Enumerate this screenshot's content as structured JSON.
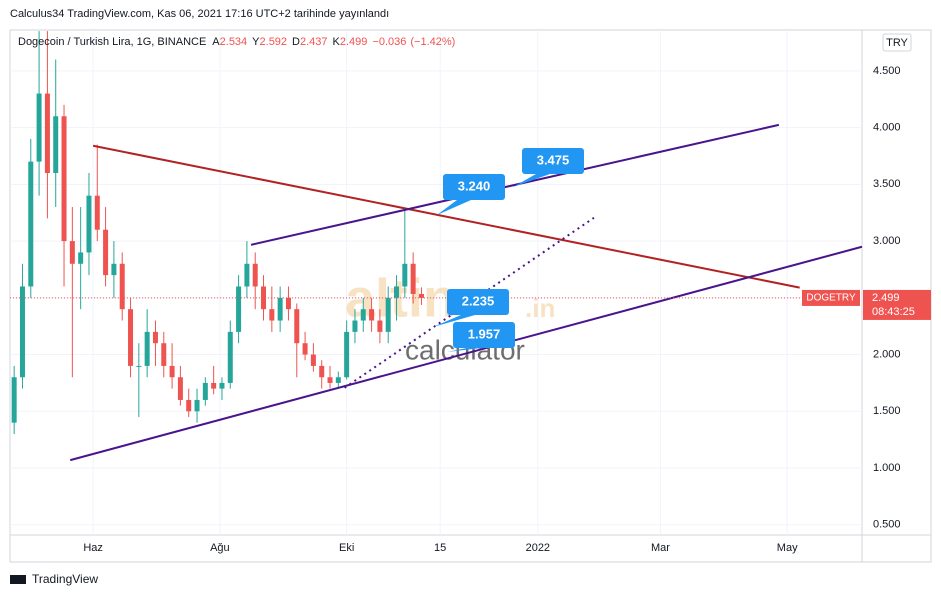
{
  "header": "Calculus34 TradingView.com, Kas 06, 2021 17:16 UTC+2 tarihinde yayınlandı",
  "currency_button": "TRY",
  "footer": "TradingView",
  "watermark": {
    "main": "altin",
    "suffix": ".in",
    "sub": "calculator"
  },
  "chart_data": {
    "type": "candlestick",
    "title": "Dogecoin / Turkish Lira, 1G, BINANCE",
    "ohlc": [
      {
        "label": "A",
        "value": 2.534
      },
      {
        "label": "Y",
        "value": 2.592
      },
      {
        "label": "D",
        "value": 2.437
      },
      {
        "label": "K",
        "value": 2.499
      }
    ],
    "change": {
      "value": -0.036,
      "label": "−0.036"
    },
    "change_pct": {
      "value": -1.42,
      "label": "(−1.42%)"
    },
    "symbol_tag": "DOGETRY",
    "last_price": 2.499,
    "countdown": "08:43:25",
    "up_color": "#26a69a",
    "down_color": "#ef5350",
    "grid": true,
    "xlim": [
      "2021-04-22",
      "2022-06-06"
    ],
    "xticks": [
      {
        "value": "2021-06-01",
        "label": "Haz"
      },
      {
        "value": "2021-08-01",
        "label": "Ağu"
      },
      {
        "value": "2021-10-01",
        "label": "Eki"
      },
      {
        "value": "2021-11-15",
        "label": "15"
      },
      {
        "value": "2022-01-01",
        "label": "2022"
      },
      {
        "value": "2022-03-01",
        "label": "Mar"
      },
      {
        "value": "2022-05-01",
        "label": "May"
      }
    ],
    "ylim": [
      0.41,
      4.86
    ],
    "yticks": [
      {
        "value": 0.5,
        "label": "0.500"
      },
      {
        "value": 1,
        "label": "1.000"
      },
      {
        "value": 1.5,
        "label": "1.500"
      },
      {
        "value": 2,
        "label": "2.000"
      },
      {
        "value": 2.5,
        "label": "2.500"
      },
      {
        "value": 3,
        "label": "3.000"
      },
      {
        "value": 3.5,
        "label": "3.500"
      },
      {
        "value": 4,
        "label": "4.000"
      },
      {
        "value": 4.5,
        "label": "4.500"
      }
    ],
    "candles": {
      "x": [
        "2021-04-24",
        "2021-04-28",
        "2021-05-02",
        "2021-05-06",
        "2021-05-10",
        "2021-05-14",
        "2021-05-18",
        "2021-05-22",
        "2021-05-26",
        "2021-05-30",
        "2021-06-03",
        "2021-06-07",
        "2021-06-11",
        "2021-06-15",
        "2021-06-19",
        "2021-06-23",
        "2021-06-27",
        "2021-07-01",
        "2021-07-05",
        "2021-07-09",
        "2021-07-13",
        "2021-07-17",
        "2021-07-21",
        "2021-07-25",
        "2021-07-29",
        "2021-08-02",
        "2021-08-06",
        "2021-08-10",
        "2021-08-14",
        "2021-08-18",
        "2021-08-22",
        "2021-08-26",
        "2021-08-30",
        "2021-09-03",
        "2021-09-07",
        "2021-09-11",
        "2021-09-15",
        "2021-09-19",
        "2021-09-23",
        "2021-09-27",
        "2021-10-01",
        "2021-10-05",
        "2021-10-09",
        "2021-10-13",
        "2021-10-17",
        "2021-10-21",
        "2021-10-25",
        "2021-10-29",
        "2021-11-02",
        "2021-11-06"
      ],
      "open": [
        1.4,
        1.8,
        2.6,
        3.7,
        4.3,
        3.6,
        4.1,
        3.0,
        2.8,
        2.9,
        3.4,
        3.1,
        2.7,
        2.8,
        2.4,
        1.9,
        1.9,
        2.2,
        2.1,
        1.9,
        1.8,
        1.6,
        1.5,
        1.6,
        1.75,
        1.7,
        1.75,
        2.2,
        2.6,
        2.8,
        2.6,
        2.4,
        2.3,
        2.5,
        2.4,
        2.1,
        2.0,
        1.9,
        1.8,
        1.75,
        1.8,
        2.2,
        2.3,
        2.4,
        2.3,
        2.2,
        2.5,
        2.6,
        2.8,
        2.534
      ],
      "high": [
        1.9,
        2.8,
        3.9,
        4.85,
        4.85,
        4.6,
        4.2,
        3.3,
        3.3,
        3.6,
        3.85,
        3.3,
        3.0,
        2.9,
        2.5,
        2.1,
        2.4,
        2.3,
        2.2,
        2.1,
        1.9,
        1.7,
        1.7,
        1.8,
        1.9,
        1.8,
        2.3,
        2.7,
        3.0,
        2.9,
        2.7,
        2.6,
        2.6,
        2.6,
        2.45,
        2.2,
        2.1,
        1.95,
        1.9,
        1.85,
        2.3,
        2.4,
        2.5,
        2.5,
        2.4,
        2.6,
        2.7,
        3.28,
        2.9,
        2.592
      ],
      "low": [
        1.3,
        1.7,
        2.5,
        3.4,
        3.2,
        3.3,
        2.6,
        1.8,
        2.4,
        2.7,
        3.0,
        2.6,
        2.5,
        2.3,
        1.8,
        1.45,
        1.8,
        1.9,
        1.8,
        1.7,
        1.55,
        1.45,
        1.4,
        1.55,
        1.65,
        1.6,
        1.7,
        2.1,
        2.5,
        2.4,
        2.3,
        2.2,
        2.2,
        2.3,
        1.8,
        1.95,
        1.85,
        1.7,
        1.7,
        1.7,
        1.78,
        2.1,
        2.2,
        2.2,
        2.1,
        2.1,
        2.3,
        2.5,
        2.45,
        2.437
      ],
      "close": [
        1.8,
        2.6,
        3.7,
        4.3,
        3.6,
        4.1,
        3.0,
        2.8,
        2.9,
        3.4,
        3.1,
        2.7,
        2.8,
        2.4,
        1.9,
        1.9,
        2.2,
        2.1,
        1.9,
        1.8,
        1.6,
        1.5,
        1.6,
        1.75,
        1.7,
        1.75,
        2.2,
        2.6,
        2.8,
        2.6,
        2.4,
        2.3,
        2.5,
        2.4,
        2.1,
        2.0,
        1.9,
        1.8,
        1.75,
        1.8,
        2.2,
        2.3,
        2.4,
        2.3,
        2.2,
        2.5,
        2.6,
        2.8,
        2.534,
        2.499
      ]
    },
    "trend_lines": [
      {
        "color": "#b22222",
        "x": [
          "2021-06-01",
          "2022-05-07"
        ],
        "y": [
          3.84,
          2.59
        ]
      },
      {
        "color": "#4a148c",
        "x": [
          "2021-08-16",
          "2022-04-27"
        ],
        "y": [
          2.967,
          4.024
        ]
      },
      {
        "color": "#4a148c",
        "x": [
          "2021-05-21",
          "2022-06-06"
        ],
        "y": [
          1.07,
          2.95
        ]
      },
      {
        "color": "#4a148c",
        "x": [
          "2021-09-30",
          "2022-01-28"
        ],
        "y": [
          1.707,
          3.205
        ],
        "dotted": true
      }
    ],
    "annotations": [
      {
        "value": 3.24,
        "label": "3.240"
      },
      {
        "value": 3.475,
        "label": "3.475"
      },
      {
        "value": 2.235,
        "label": "2.235"
      },
      {
        "value": 1.957,
        "label": "1.957"
      }
    ]
  }
}
